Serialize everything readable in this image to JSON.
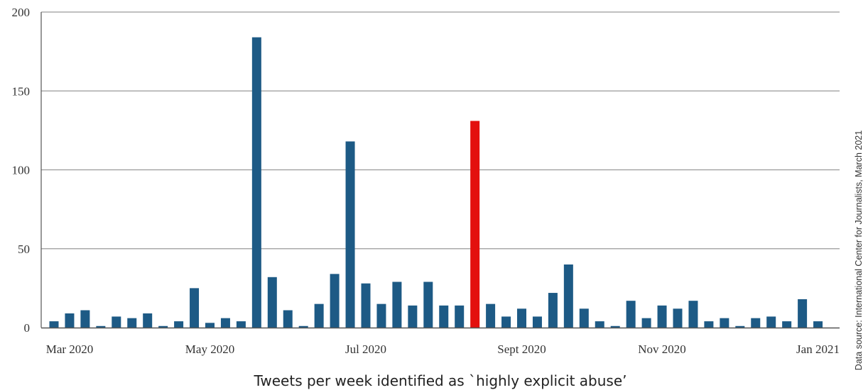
{
  "chart_data": {
    "type": "bar",
    "xlabel": "Tweets per week identified as `highly explicit abuse’",
    "ylabel": "",
    "ylim": [
      0,
      200
    ],
    "yticks": [
      0,
      50,
      100,
      150,
      200
    ],
    "x_tick_labels": [
      {
        "label": "Mar 2020",
        "bar_index": 1
      },
      {
        "label": "May 2020",
        "bar_index": 10
      },
      {
        "label": "Jul 2020",
        "bar_index": 20
      },
      {
        "label": "Sept 2020",
        "bar_index": 30
      },
      {
        "label": "Nov 2020",
        "bar_index": 39
      },
      {
        "label": "Jan 2021",
        "bar_index": 49
      }
    ],
    "values": [
      4,
      9,
      11,
      1,
      7,
      6,
      9,
      1,
      4,
      25,
      3,
      6,
      4,
      184,
      32,
      11,
      1,
      15,
      34,
      118,
      28,
      15,
      29,
      14,
      29,
      14,
      14,
      131,
      15,
      7,
      12,
      7,
      22,
      40,
      12,
      4,
      1,
      17,
      6,
      14,
      12,
      17,
      4,
      6,
      1,
      6,
      7,
      4,
      18,
      4
    ],
    "highlight_index": 27,
    "colors": {
      "bar": "#1d5a85",
      "highlight": "#e3100e",
      "grid": "#9a9a9a",
      "axis": "#555555"
    },
    "grid": true,
    "source_note": "Data source: International Center for Journalists, March 2021"
  }
}
